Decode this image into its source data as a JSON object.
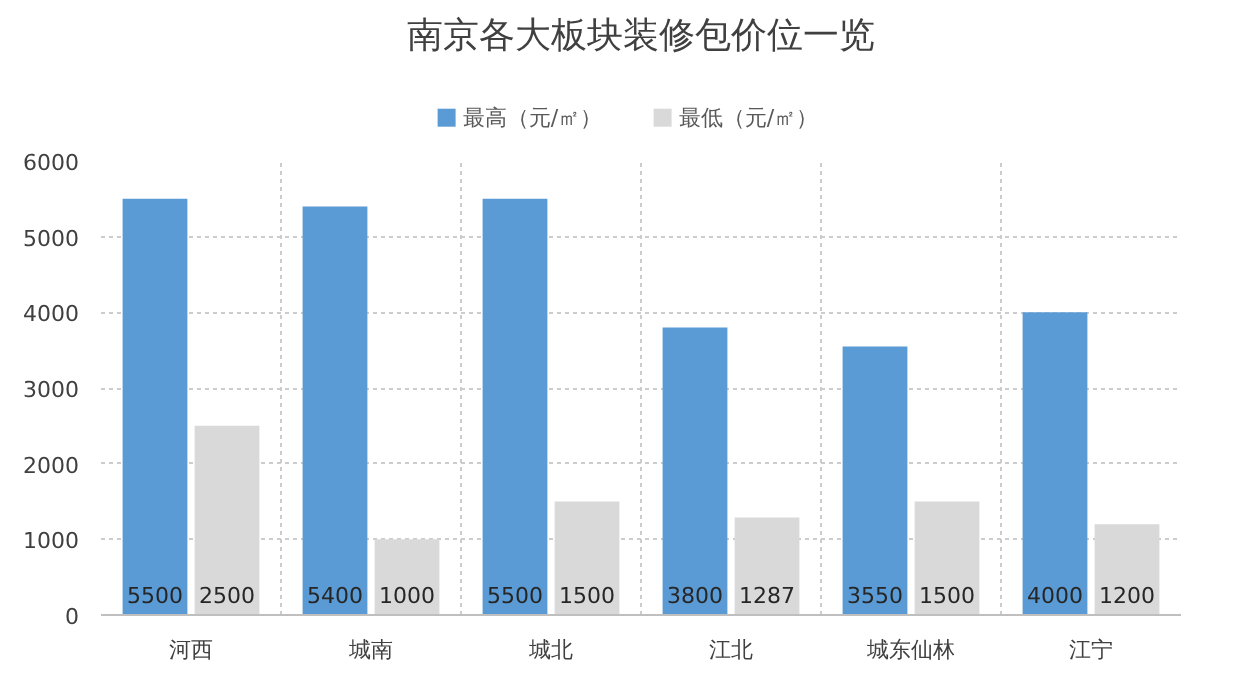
{
  "chart_data": {
    "type": "bar",
    "title": "南京各大板块装修包价位一览",
    "categories": [
      "河西",
      "城南",
      "城北",
      "江北",
      "城东仙林",
      "江宁"
    ],
    "series": [
      {
        "name": "最高（元/㎡）",
        "color": "#5b9bd5",
        "values": [
          5500,
          5400,
          5500,
          3800,
          3550,
          4000
        ]
      },
      {
        "name": "最低（元/㎡）",
        "color": "#d9d9d9",
        "values": [
          2500,
          1000,
          1500,
          1287,
          1500,
          1200
        ]
      }
    ],
    "ylim": [
      0,
      6000
    ],
    "yticks": [
      0,
      1000,
      2000,
      3000,
      4000,
      5000,
      6000
    ],
    "grid": true,
    "legend": "top",
    "data_labels": true
  }
}
